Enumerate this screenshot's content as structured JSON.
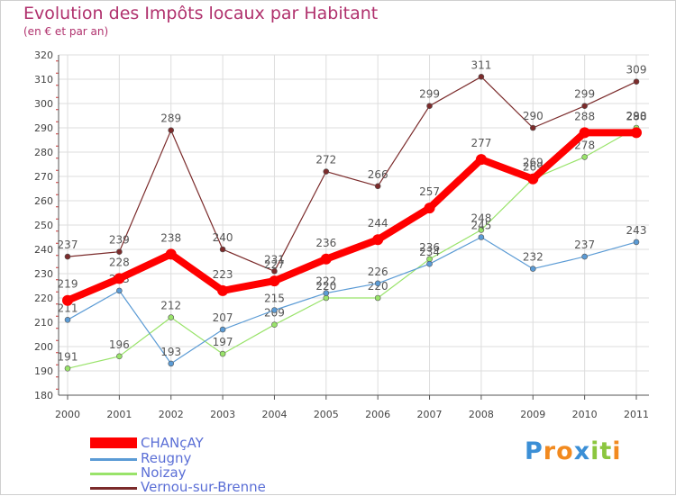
{
  "title": "Evolution des Impôts locaux par Habitant",
  "subtitle": "(en € et par an)",
  "logo": {
    "text": "Proxiti",
    "letters": [
      "P",
      "r",
      "o",
      "x",
      "i",
      "t",
      "i"
    ],
    "colors": [
      "#3b8fd6",
      "#f28a1f",
      "#f28a1f",
      "#3b8fd6",
      "#8cc63f",
      "#8cc63f",
      "#f28a1f"
    ]
  },
  "colors": {
    "chancay": "#ff0000",
    "reugny": "#5b9bd5",
    "noizay": "#99e36a",
    "vernou": "#7b2b2b",
    "grid": "#dddddd",
    "axis": "#555555"
  },
  "chart_data": {
    "type": "line",
    "title": "Evolution des Impôts locaux par Habitant",
    "subtitle": "(en € et par an)",
    "xlabel": "",
    "ylabel": "",
    "x": [
      "2000",
      "2001",
      "2002",
      "2003",
      "2004",
      "2005",
      "2006",
      "2007",
      "2008",
      "2009",
      "2010",
      "2011"
    ],
    "ylim": [
      180,
      320
    ],
    "yticks": [
      "180",
      "190",
      "200",
      "210",
      "220",
      "230",
      "240",
      "250",
      "260",
      "270",
      "280",
      "290",
      "300",
      "310",
      "320"
    ],
    "legend_position": "bottom-left",
    "series": [
      {
        "name": "Vernou-sur-Brenne",
        "color": "#7b2b2b",
        "values": [
          237,
          239,
          289,
          240,
          231,
          272,
          266,
          299,
          311,
          290,
          299,
          309
        ],
        "labels": [
          "237",
          "239",
          "289",
          "240",
          "231",
          "272",
          "266",
          "299",
          "311",
          "290",
          "299",
          "309"
        ]
      },
      {
        "name": "Noizay",
        "color": "#99e36a",
        "values": [
          191,
          196,
          212,
          197,
          209,
          220,
          220,
          236,
          248,
          269,
          278,
          290
        ],
        "labels": [
          "191",
          "196",
          "212",
          "197",
          "209",
          "220",
          "220",
          "236",
          "248",
          "269",
          "278",
          "290"
        ]
      },
      {
        "name": "Reugny",
        "color": "#5b9bd5",
        "values": [
          211,
          223,
          193,
          207,
          215,
          222,
          226,
          234,
          245,
          232,
          237,
          243
        ],
        "labels": [
          "211",
          "223",
          "193",
          "207",
          "215",
          "222",
          "226",
          "234",
          "245",
          "232",
          "237",
          "243"
        ]
      },
      {
        "name": "CHANçAY",
        "color": "#ff0000",
        "values": [
          219,
          228,
          238,
          223,
          227,
          236,
          244,
          257,
          277,
          269,
          288,
          288
        ],
        "labels": [
          "219",
          "228",
          "238",
          "223",
          "227",
          "236",
          "244",
          "257",
          "277",
          "269",
          "288",
          "288"
        ]
      }
    ],
    "legend": [
      "CHANçAY",
      "Reugny",
      "Noizay",
      "Vernou-sur-Brenne"
    ]
  }
}
